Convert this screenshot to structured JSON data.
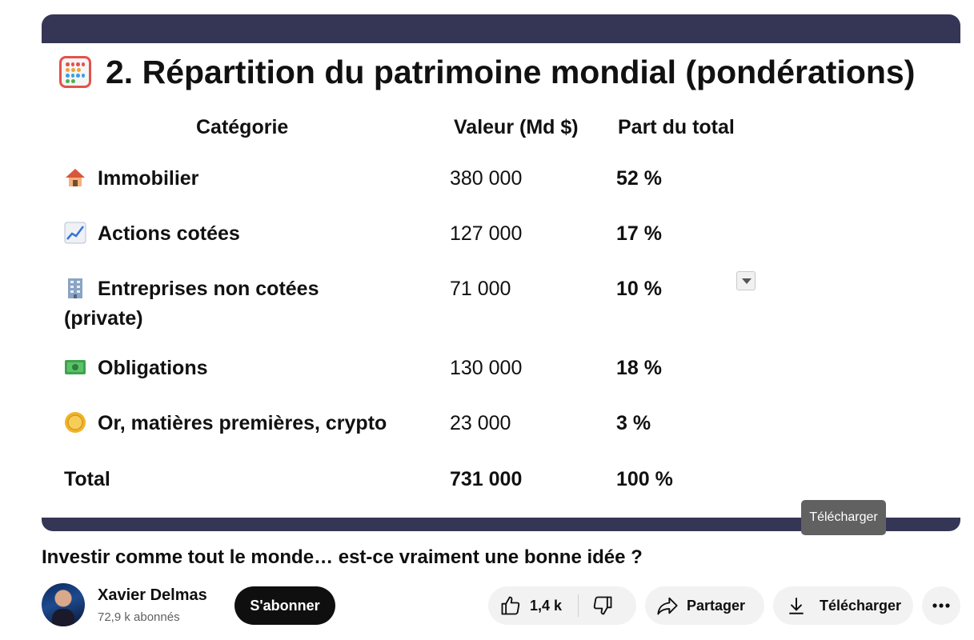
{
  "slide": {
    "title": "2. Répartition du patrimoine mondial (pondérations)",
    "title_icon": "abacus-icon",
    "headers": [
      "Catégorie",
      "Valeur (Md $)",
      "Part du total"
    ],
    "rows": [
      {
        "icon": "house-icon",
        "category": "Immobilier",
        "value": "380 000",
        "share": "52 %"
      },
      {
        "icon": "chart-increasing-icon",
        "category": "Actions cotées",
        "value": "127 000",
        "share": "17 %"
      },
      {
        "icon": "office-building-icon",
        "category": "Entreprises non cotées",
        "category_line2": "(private)",
        "value": "71 000",
        "share": "10 %"
      },
      {
        "icon": "dollar-banknote-icon",
        "category": "Obligations",
        "value": "130 000",
        "share": "18 %"
      },
      {
        "icon": "coin-icon",
        "category": "Or, matières premières, crypto",
        "value": "23 000",
        "share": "3 %"
      }
    ],
    "total": {
      "label": "Total",
      "value": "731 000",
      "share": "100 %"
    }
  },
  "tooltip": {
    "text": "Télécharger"
  },
  "video": {
    "title": "Investir comme tout le monde… est-ce vraiment une bonne idée ?"
  },
  "channel": {
    "name": "Xavier Delmas",
    "subscribers": "72,9 k abonnés",
    "subscribe_label": "S'abonner"
  },
  "actions": {
    "likes": "1,4 k",
    "share_label": "Partager",
    "download_label": "Télécharger"
  },
  "colors": {
    "player_bar": "#353656",
    "pill_bg": "#f2f2f2",
    "subscribe_bg": "#0f0f0f",
    "tooltip_bg": "#616161"
  }
}
